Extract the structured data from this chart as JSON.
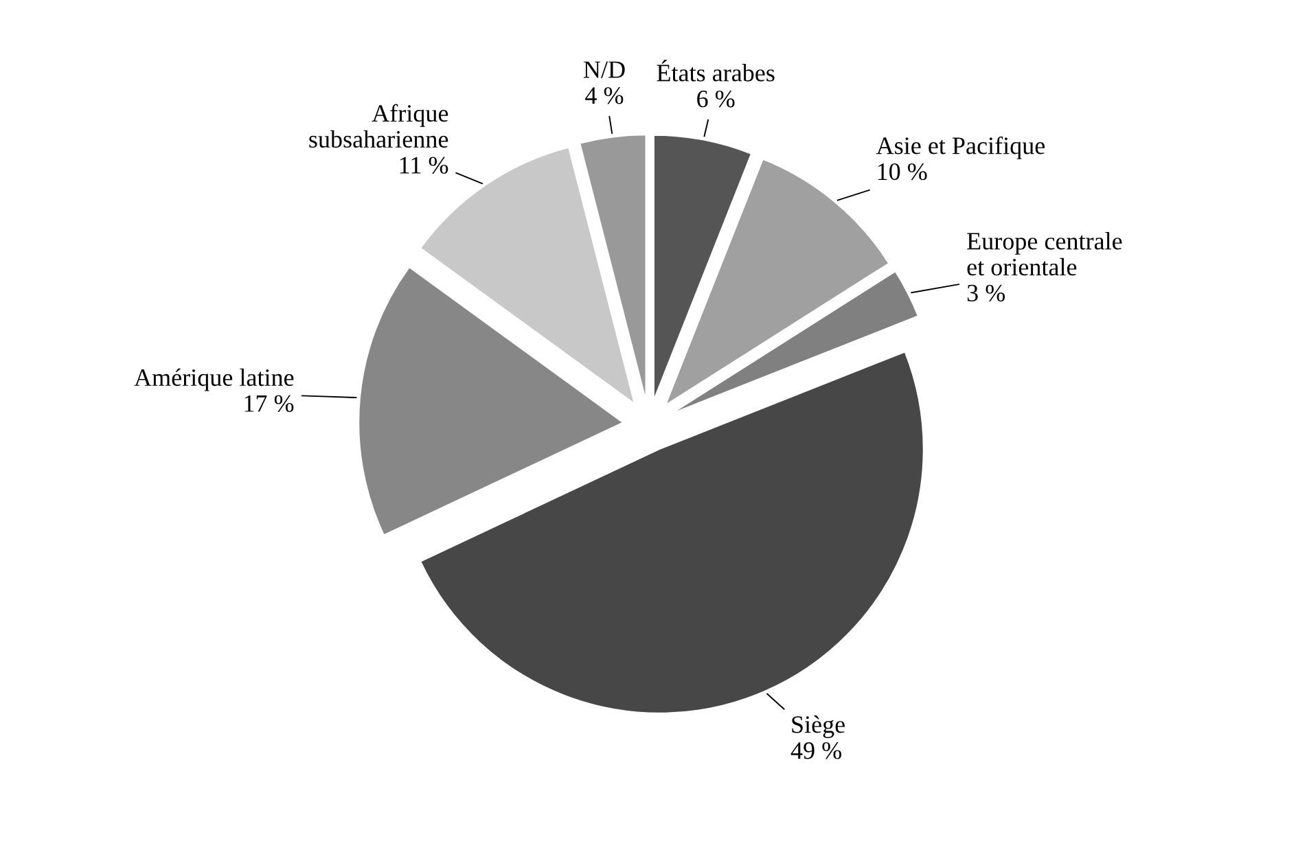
{
  "chart_data": {
    "type": "pie",
    "categories": [
      "États arabes",
      "Asie et Pacifique",
      "Europe centrale\net orientale",
      "Siège",
      "Amérique latine",
      "Afrique\nsubsaharienne",
      "N/D"
    ],
    "values": [
      6,
      10,
      3,
      49,
      17,
      11,
      4
    ],
    "value_labels": [
      "6 %",
      "10 %",
      "3 %",
      "49 %",
      "17 %",
      "11 %",
      "4 %"
    ],
    "colors": [
      "#555555",
      "#a0a0a0",
      "#808080",
      "#474747",
      "#878787",
      "#c8c8c8",
      "#999999"
    ]
  }
}
